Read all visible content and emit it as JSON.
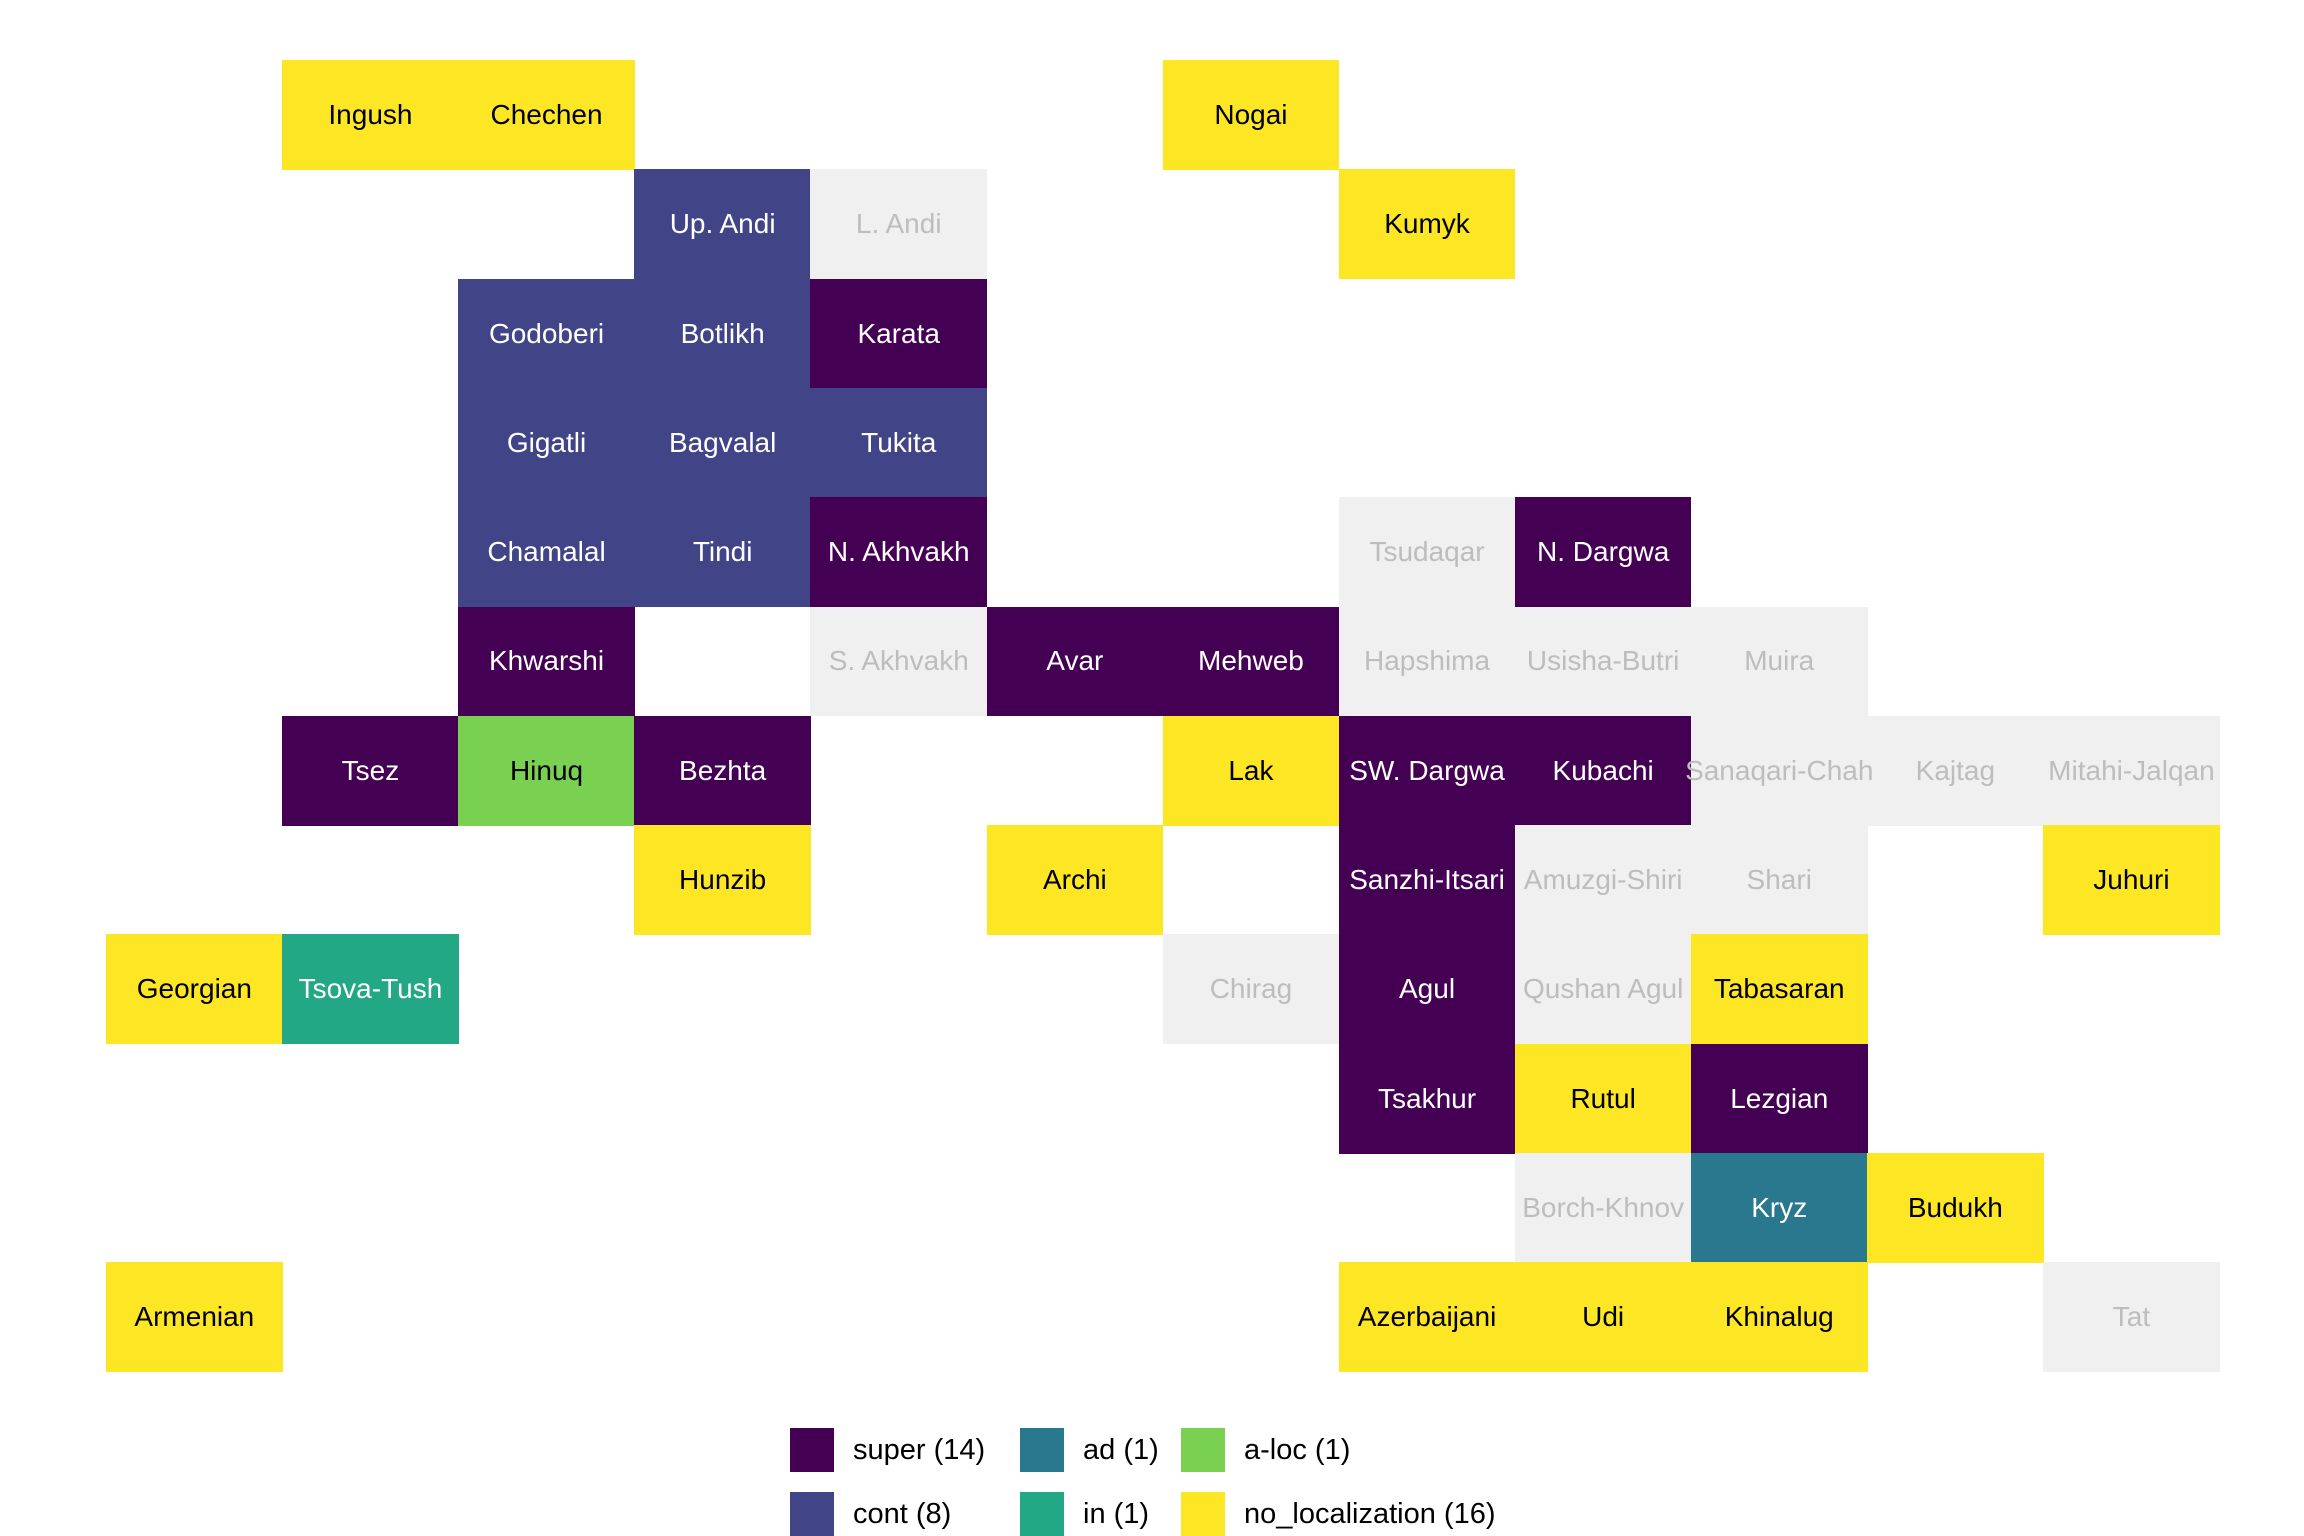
{
  "figure": {
    "background": "#FFFFFF",
    "title": ""
  },
  "chart_data": {
    "type": "heatmap",
    "subtype": "categorical-tile-grid-language-map",
    "title": "",
    "xlabel": "",
    "ylabel": "",
    "grid": {
      "columns": 12,
      "rows": 12
    },
    "gridlines": false,
    "legend_position": "bottom",
    "categories": [
      {
        "name": "super",
        "label": "super (14)",
        "count": 14,
        "color": "#440154",
        "text_color": "#FFFFFF"
      },
      {
        "name": "ad",
        "label": "ad (1)",
        "count": 1,
        "color": "#2A788E",
        "text_color": "#FFFFFF"
      },
      {
        "name": "a-loc",
        "label": "a-loc (1)",
        "count": 1,
        "color": "#7AD151",
        "text_color": "#000000"
      },
      {
        "name": "cont",
        "label": "cont (8)",
        "count": 8,
        "color": "#414487",
        "text_color": "#FFFFFF"
      },
      {
        "name": "in",
        "label": "in (1)",
        "count": 1,
        "color": "#22A884",
        "text_color": "#FFFFFF"
      },
      {
        "name": "no_localization",
        "label": "no_localization (16)",
        "count": 16,
        "color": "#FDE725",
        "text_color": "#000000"
      }
    ],
    "no_data": {
      "color": "#F0F0F0",
      "text_color": "#BDBDBD"
    },
    "legend_rows": [
      [
        "super",
        "ad",
        "a-loc"
      ],
      [
        "cont",
        "in",
        "no_localization"
      ]
    ],
    "cells": [
      {
        "label": "Ingush",
        "row": 1,
        "col": 2,
        "category": "no_localization"
      },
      {
        "label": "Chechen",
        "row": 1,
        "col": 3,
        "category": "no_localization"
      },
      {
        "label": "Nogai",
        "row": 1,
        "col": 7,
        "category": "no_localization"
      },
      {
        "label": "Up. Andi",
        "row": 2,
        "col": 4,
        "category": "cont"
      },
      {
        "label": "L. Andi",
        "row": 2,
        "col": 5,
        "category": "none"
      },
      {
        "label": "Kumyk",
        "row": 2,
        "col": 8,
        "category": "no_localization"
      },
      {
        "label": "Godoberi",
        "row": 3,
        "col": 3,
        "category": "cont"
      },
      {
        "label": "Botlikh",
        "row": 3,
        "col": 4,
        "category": "cont"
      },
      {
        "label": "Karata",
        "row": 3,
        "col": 5,
        "category": "super"
      },
      {
        "label": "Gigatli",
        "row": 4,
        "col": 3,
        "category": "cont"
      },
      {
        "label": "Bagvalal",
        "row": 4,
        "col": 4,
        "category": "cont"
      },
      {
        "label": "Tukita",
        "row": 4,
        "col": 5,
        "category": "cont"
      },
      {
        "label": "Chamalal",
        "row": 5,
        "col": 3,
        "category": "cont"
      },
      {
        "label": "Tindi",
        "row": 5,
        "col": 4,
        "category": "cont"
      },
      {
        "label": "N. Akhvakh",
        "row": 5,
        "col": 5,
        "category": "super"
      },
      {
        "label": "Tsudaqar",
        "row": 5,
        "col": 8,
        "category": "none"
      },
      {
        "label": "N. Dargwa",
        "row": 5,
        "col": 9,
        "category": "super"
      },
      {
        "label": "Khwarshi",
        "row": 6,
        "col": 3,
        "category": "super"
      },
      {
        "label": "S. Akhvakh",
        "row": 6,
        "col": 5,
        "category": "none"
      },
      {
        "label": "Avar",
        "row": 6,
        "col": 6,
        "category": "super"
      },
      {
        "label": "Mehweb",
        "row": 6,
        "col": 7,
        "category": "super"
      },
      {
        "label": "Hapshima",
        "row": 6,
        "col": 8,
        "category": "none"
      },
      {
        "label": "Usisha-Butri",
        "row": 6,
        "col": 9,
        "category": "none"
      },
      {
        "label": "Muira",
        "row": 6,
        "col": 10,
        "category": "none"
      },
      {
        "label": "Tsez",
        "row": 7,
        "col": 2,
        "category": "super"
      },
      {
        "label": "Hinuq",
        "row": 7,
        "col": 3,
        "category": "a-loc"
      },
      {
        "label": "Bezhta",
        "row": 7,
        "col": 4,
        "category": "super"
      },
      {
        "label": "Lak",
        "row": 7,
        "col": 7,
        "category": "no_localization"
      },
      {
        "label": "SW. Dargwa",
        "row": 7,
        "col": 8,
        "category": "super"
      },
      {
        "label": "Kubachi",
        "row": 7,
        "col": 9,
        "category": "super"
      },
      {
        "label": "Sanaqari-Chah",
        "row": 7,
        "col": 10,
        "category": "none"
      },
      {
        "label": "Kajtag",
        "row": 7,
        "col": 11,
        "category": "none"
      },
      {
        "label": "Mitahi-Jalqan",
        "row": 7,
        "col": 12,
        "category": "none"
      },
      {
        "label": "Hunzib",
        "row": 8,
        "col": 4,
        "category": "no_localization"
      },
      {
        "label": "Archi",
        "row": 8,
        "col": 6,
        "category": "no_localization"
      },
      {
        "label": "Sanzhi-Itsari",
        "row": 8,
        "col": 8,
        "category": "super"
      },
      {
        "label": "Amuzgi-Shiri",
        "row": 8,
        "col": 9,
        "category": "none"
      },
      {
        "label": "Shari",
        "row": 8,
        "col": 10,
        "category": "none"
      },
      {
        "label": "Juhuri",
        "row": 8,
        "col": 12,
        "category": "no_localization"
      },
      {
        "label": "Georgian",
        "row": 9,
        "col": 1,
        "category": "no_localization"
      },
      {
        "label": "Tsova-Tush",
        "row": 9,
        "col": 2,
        "category": "in"
      },
      {
        "label": "Chirag",
        "row": 9,
        "col": 7,
        "category": "none"
      },
      {
        "label": "Agul",
        "row": 9,
        "col": 8,
        "category": "super"
      },
      {
        "label": "Qushan Agul",
        "row": 9,
        "col": 9,
        "category": "none"
      },
      {
        "label": "Tabasaran",
        "row": 9,
        "col": 10,
        "category": "no_localization"
      },
      {
        "label": "Tsakhur",
        "row": 10,
        "col": 8,
        "category": "super"
      },
      {
        "label": "Rutul",
        "row": 10,
        "col": 9,
        "category": "no_localization"
      },
      {
        "label": "Lezgian",
        "row": 10,
        "col": 10,
        "category": "super"
      },
      {
        "label": "Borch-Khnov",
        "row": 11,
        "col": 9,
        "category": "none"
      },
      {
        "label": "Kryz",
        "row": 11,
        "col": 10,
        "category": "ad"
      },
      {
        "label": "Budukh",
        "row": 11,
        "col": 11,
        "category": "no_localization"
      },
      {
        "label": "Armenian",
        "row": 12,
        "col": 1,
        "category": "no_localization"
      },
      {
        "label": "Azerbaijani",
        "row": 12,
        "col": 8,
        "category": "no_localization"
      },
      {
        "label": "Udi",
        "row": 12,
        "col": 9,
        "category": "no_localization"
      },
      {
        "label": "Khinalug",
        "row": 12,
        "col": 10,
        "category": "no_localization"
      },
      {
        "label": "Tat",
        "row": 12,
        "col": 12,
        "category": "none"
      }
    ]
  }
}
